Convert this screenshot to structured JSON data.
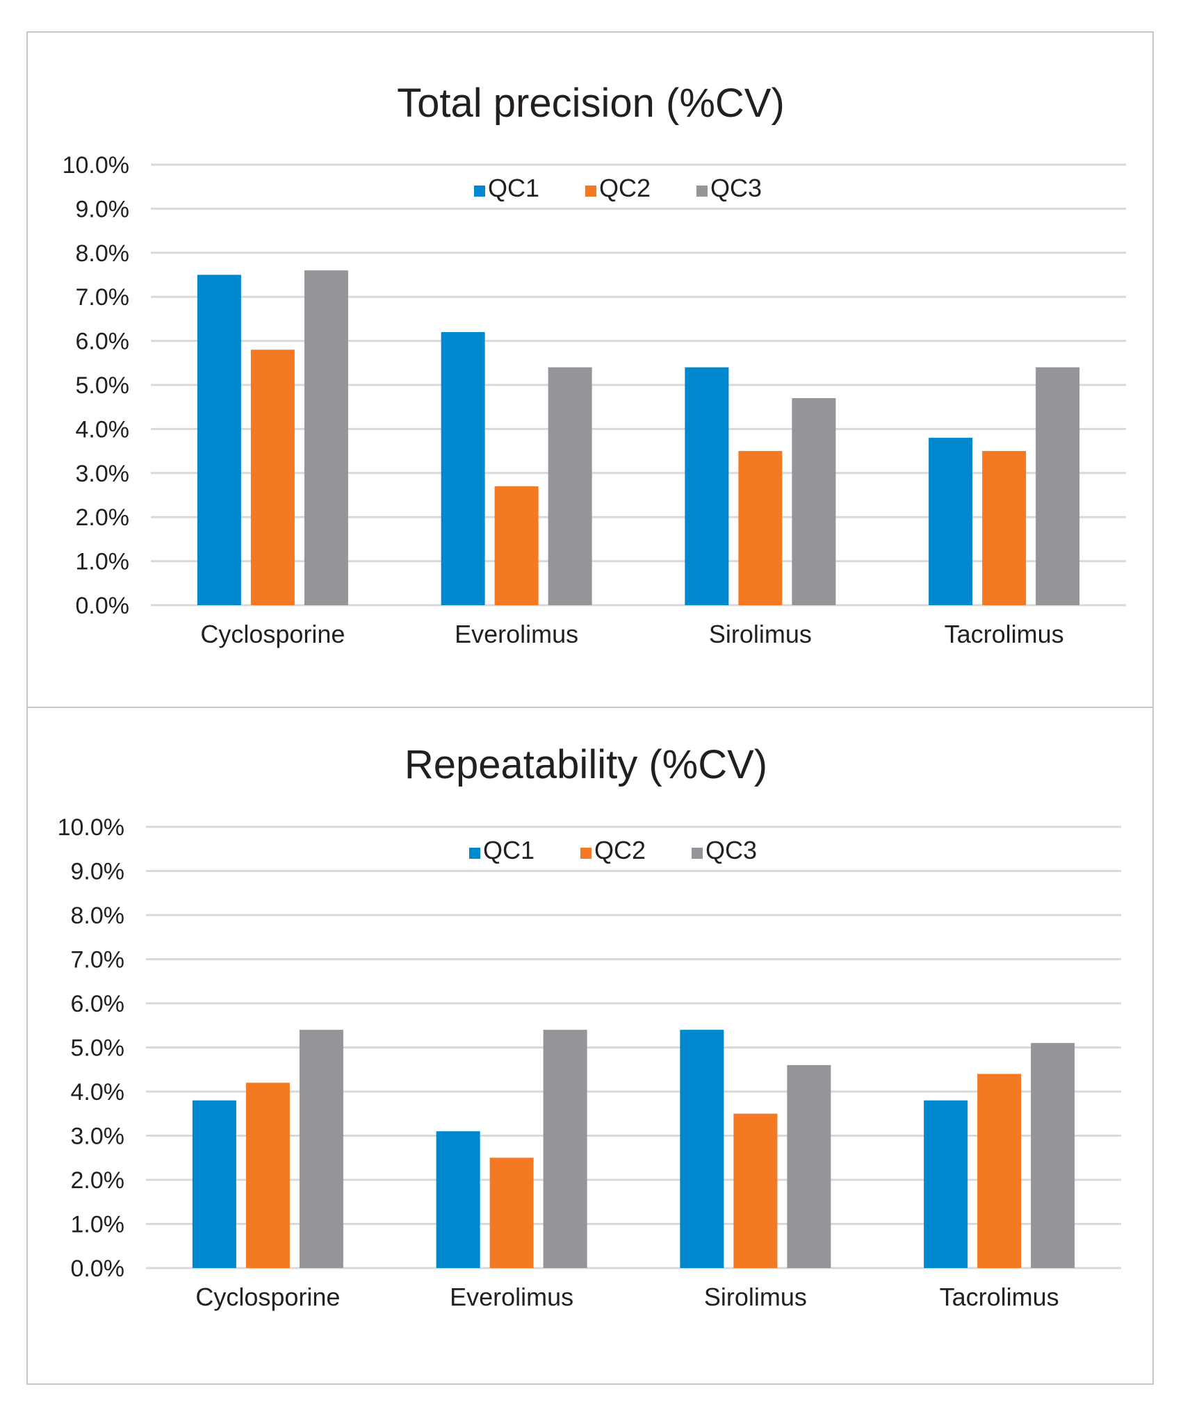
{
  "chart_data": [
    {
      "type": "bar",
      "title": "Total precision (%CV)",
      "xlabel": "",
      "ylabel": "",
      "categories": [
        "Cyclosporine",
        "Everolimus",
        "Sirolimus",
        "Tacrolimus"
      ],
      "series": [
        {
          "name": "QC1",
          "color": "#0088cf",
          "values": [
            7.5,
            6.2,
            5.4,
            3.8
          ]
        },
        {
          "name": "QC2",
          "color": "#f37a22",
          "values": [
            5.8,
            2.7,
            3.5,
            3.5
          ]
        },
        {
          "name": "QC3",
          "color": "#939598",
          "values": [
            7.6,
            5.4,
            4.7,
            5.4
          ]
        }
      ],
      "ylim": [
        0,
        10
      ],
      "yticks": [
        0,
        1,
        2,
        3,
        4,
        5,
        6,
        7,
        8,
        9,
        10
      ],
      "ytick_labels": [
        "0.0%",
        "1.0%",
        "2.0%",
        "3.0%",
        "4.0%",
        "5.0%",
        "6.0%",
        "7.0%",
        "8.0%",
        "9.0%",
        "10.0%"
      ],
      "value_unit": "%",
      "grid": true,
      "legend_position": "top-center"
    },
    {
      "type": "bar",
      "title": "Repeatability (%CV)",
      "xlabel": "",
      "ylabel": "",
      "categories": [
        "Cyclosporine",
        "Everolimus",
        "Sirolimus",
        "Tacrolimus"
      ],
      "series": [
        {
          "name": "QC1",
          "color": "#0088cf",
          "values": [
            3.8,
            3.1,
            5.4,
            3.8
          ]
        },
        {
          "name": "QC2",
          "color": "#f37a22",
          "values": [
            4.2,
            2.5,
            3.5,
            4.4
          ]
        },
        {
          "name": "QC3",
          "color": "#939598",
          "values": [
            5.4,
            5.4,
            4.6,
            5.1
          ]
        }
      ],
      "ylim": [
        0,
        10
      ],
      "yticks": [
        0,
        1,
        2,
        3,
        4,
        5,
        6,
        7,
        8,
        9,
        10
      ],
      "ytick_labels": [
        "0.0%",
        "1.0%",
        "2.0%",
        "3.0%",
        "4.0%",
        "5.0%",
        "6.0%",
        "7.0%",
        "8.0%",
        "9.0%",
        "10.0%"
      ],
      "value_unit": "%",
      "grid": true,
      "legend_position": "top-center"
    }
  ]
}
